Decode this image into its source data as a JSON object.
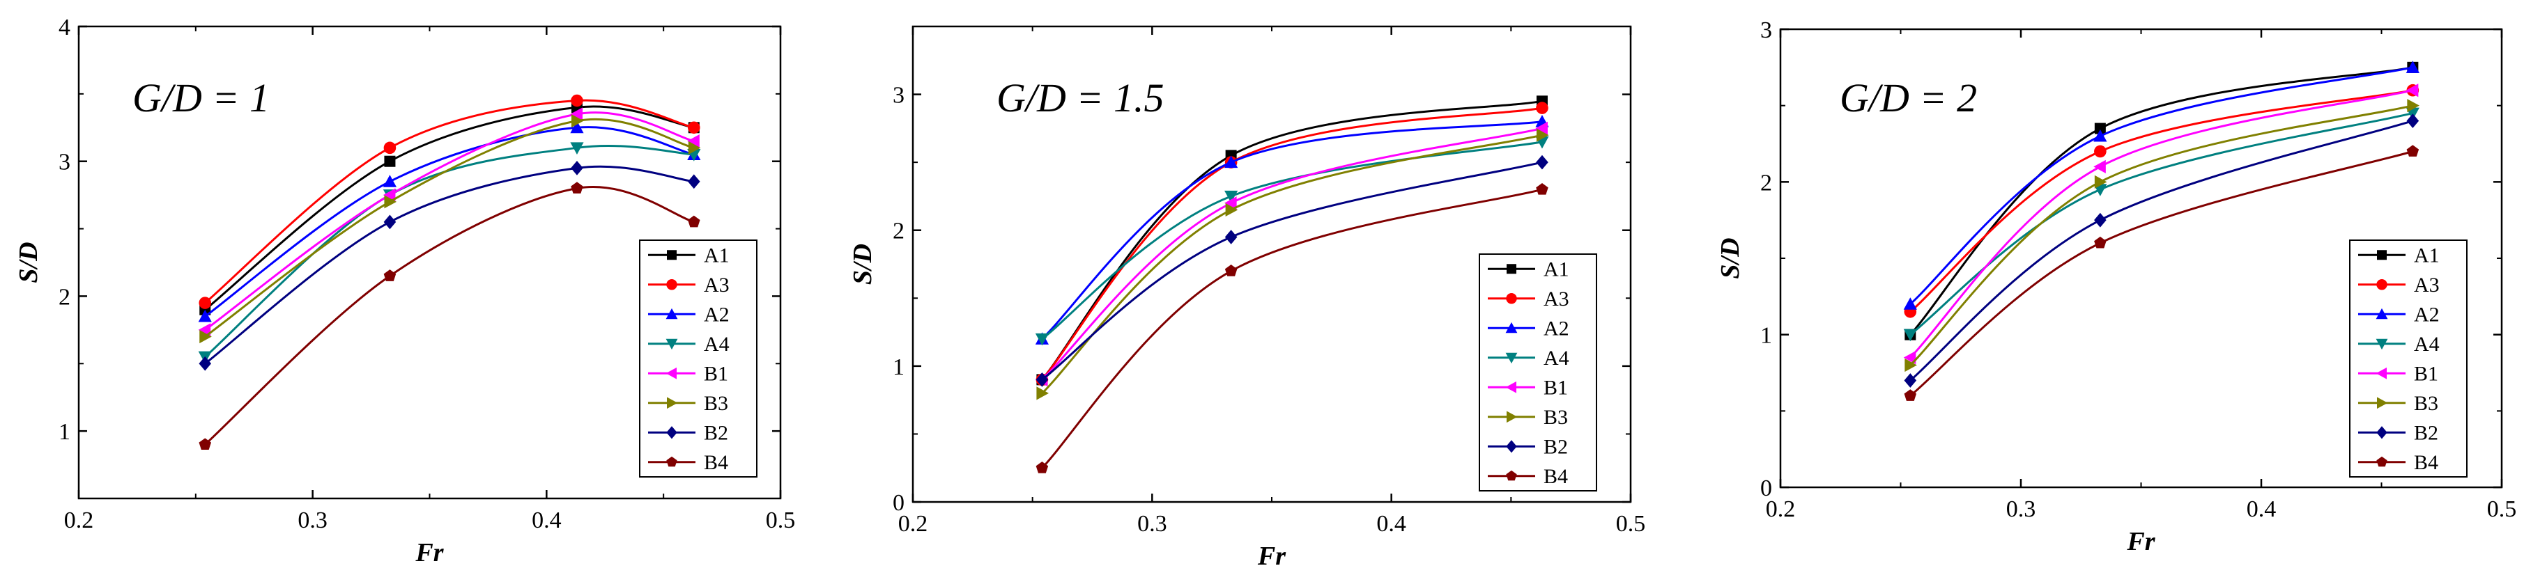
{
  "chart_data": [
    {
      "type": "line",
      "title": "G/D = 1",
      "xlabel": "Fr",
      "ylabel": "S/D",
      "xlim": [
        0.2,
        0.5
      ],
      "ylim": [
        0.5,
        4
      ],
      "xticks": [
        "0.2",
        "0.3",
        "0.4",
        "0.5"
      ],
      "yticks": [
        "1",
        "2",
        "3",
        "4"
      ],
      "x": [
        0.254,
        0.333,
        0.413,
        0.463
      ],
      "legend_position": "bottom-right",
      "series": [
        {
          "name": "A1",
          "values": [
            1.9,
            3.0,
            3.4,
            3.25
          ],
          "color": "#000000",
          "marker": "square"
        },
        {
          "name": "A3",
          "values": [
            1.95,
            3.1,
            3.45,
            3.25
          ],
          "color": "#ff0000",
          "marker": "circle"
        },
        {
          "name": "A2",
          "values": [
            1.85,
            2.85,
            3.25,
            3.05
          ],
          "color": "#0000ff",
          "marker": "triangle-up"
        },
        {
          "name": "A4",
          "values": [
            1.55,
            2.75,
            3.1,
            3.05
          ],
          "color": "#008080",
          "marker": "triangle-down"
        },
        {
          "name": "B1",
          "values": [
            1.75,
            2.75,
            3.35,
            3.15
          ],
          "color": "#ff00ff",
          "marker": "triangle-left"
        },
        {
          "name": "B3",
          "values": [
            1.7,
            2.7,
            3.3,
            3.1
          ],
          "color": "#808000",
          "marker": "triangle-right"
        },
        {
          "name": "B2",
          "values": [
            1.5,
            2.55,
            2.95,
            2.85
          ],
          "color": "#000080",
          "marker": "diamond"
        },
        {
          "name": "B4",
          "values": [
            0.9,
            2.15,
            2.8,
            2.55
          ],
          "color": "#800000",
          "marker": "pentagon"
        }
      ]
    },
    {
      "type": "line",
      "title": "G/D = 1.5",
      "xlabel": "Fr",
      "ylabel": "S/D",
      "xlim": [
        0.2,
        0.5
      ],
      "ylim": [
        0,
        3.5
      ],
      "xticks": [
        "0.2",
        "0.3",
        "0.4",
        "0.5"
      ],
      "yticks": [
        "0",
        "1",
        "2",
        "3"
      ],
      "x": [
        0.254,
        0.333,
        0.463
      ],
      "legend_position": "bottom-right",
      "series": [
        {
          "name": "A1",
          "values": [
            0.9,
            2.55,
            2.95
          ],
          "color": "#000000",
          "marker": "square"
        },
        {
          "name": "A3",
          "values": [
            0.9,
            2.5,
            2.9
          ],
          "color": "#ff0000",
          "marker": "circle"
        },
        {
          "name": "A2",
          "values": [
            1.2,
            2.5,
            2.8
          ],
          "color": "#0000ff",
          "marker": "triangle-up"
        },
        {
          "name": "A4",
          "values": [
            1.2,
            2.25,
            2.65
          ],
          "color": "#008080",
          "marker": "triangle-down"
        },
        {
          "name": "B1",
          "values": [
            0.9,
            2.2,
            2.75
          ],
          "color": "#ff00ff",
          "marker": "triangle-left"
        },
        {
          "name": "B3",
          "values": [
            0.8,
            2.15,
            2.7
          ],
          "color": "#808000",
          "marker": "triangle-right"
        },
        {
          "name": "B2",
          "values": [
            0.9,
            1.95,
            2.5
          ],
          "color": "#000080",
          "marker": "diamond"
        },
        {
          "name": "B4",
          "values": [
            0.25,
            1.7,
            2.3
          ],
          "color": "#800000",
          "marker": "pentagon"
        }
      ]
    },
    {
      "type": "line",
      "title": "G/D = 2",
      "xlabel": "Fr",
      "ylabel": "S/D",
      "xlim": [
        0.2,
        0.5
      ],
      "ylim": [
        0,
        3
      ],
      "xticks": [
        "0.2",
        "0.3",
        "0.4",
        "0.5"
      ],
      "yticks": [
        "0",
        "1",
        "2",
        "3"
      ],
      "x": [
        0.254,
        0.333,
        0.463
      ],
      "legend_position": "bottom-right",
      "series": [
        {
          "name": "A1",
          "values": [
            1.0,
            2.35,
            2.75
          ],
          "color": "#000000",
          "marker": "square"
        },
        {
          "name": "A3",
          "values": [
            1.15,
            2.2,
            2.6
          ],
          "color": "#ff0000",
          "marker": "circle"
        },
        {
          "name": "A2",
          "values": [
            1.2,
            2.3,
            2.75
          ],
          "color": "#0000ff",
          "marker": "triangle-up"
        },
        {
          "name": "A4",
          "values": [
            1.0,
            1.95,
            2.45
          ],
          "color": "#008080",
          "marker": "triangle-down"
        },
        {
          "name": "B1",
          "values": [
            0.85,
            2.1,
            2.6
          ],
          "color": "#ff00ff",
          "marker": "triangle-left"
        },
        {
          "name": "B3",
          "values": [
            0.8,
            2.0,
            2.5
          ],
          "color": "#808000",
          "marker": "triangle-right"
        },
        {
          "name": "B2",
          "values": [
            0.7,
            1.75,
            2.4
          ],
          "color": "#000080",
          "marker": "diamond"
        },
        {
          "name": "B4",
          "values": [
            0.6,
            1.6,
            2.2
          ],
          "color": "#800000",
          "marker": "pentagon"
        }
      ]
    }
  ]
}
